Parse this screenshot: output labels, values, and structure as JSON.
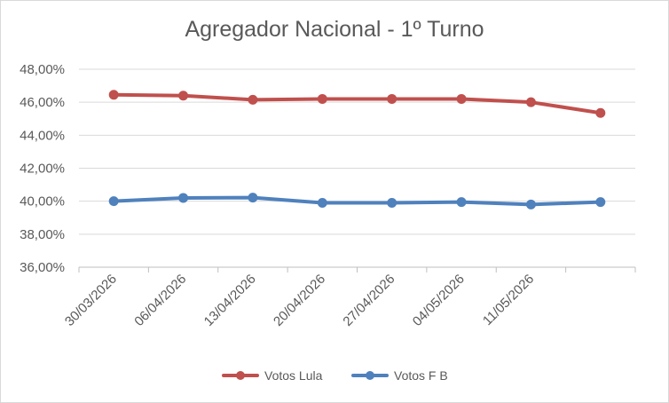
{
  "chart_data": {
    "type": "line",
    "title": "Agregador Nacional - 1º Turno",
    "categories": [
      "30/03/2026",
      "06/04/2026",
      "13/04/2026",
      "20/04/2026",
      "27/04/2026",
      "04/05/2026",
      "11/05/2026",
      ""
    ],
    "series": [
      {
        "name": "Votos Lula",
        "color": "#c0504d",
        "values": [
          46.45,
          46.4,
          46.15,
          46.2,
          46.2,
          46.2,
          46.0,
          45.35
        ]
      },
      {
        "name": "Votos F B",
        "color": "#4f81bd",
        "values": [
          40.0,
          40.2,
          40.22,
          39.9,
          39.9,
          39.95,
          39.8,
          39.95
        ]
      }
    ],
    "y_ticks": [
      "36,00%",
      "38,00%",
      "40,00%",
      "42,00%",
      "44,00%",
      "46,00%",
      "48,00%"
    ],
    "ylim": [
      36,
      48
    ],
    "grid": true,
    "legend": "bottom",
    "xlabel": "",
    "ylabel": ""
  }
}
